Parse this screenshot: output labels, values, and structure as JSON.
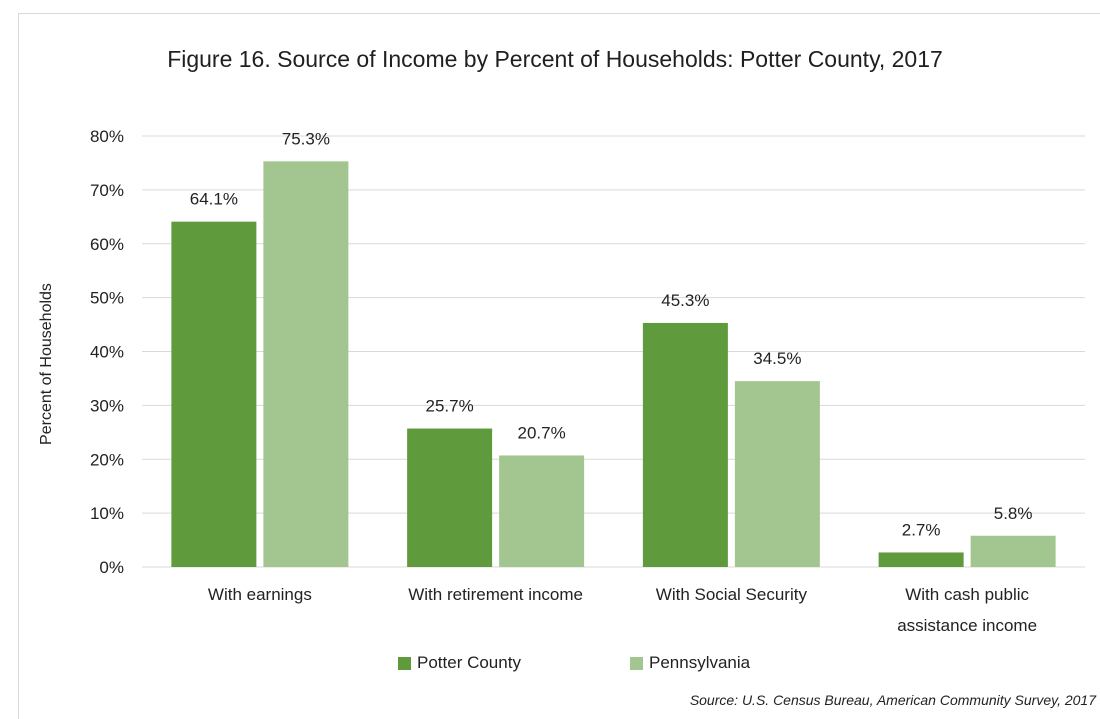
{
  "chart_data": {
    "type": "bar",
    "title": "Figure 16. Source of Income by Percent of Households: Potter County, 2017",
    "ylabel": "Percent of Households",
    "xlabel": "",
    "ylim": [
      0,
      80
    ],
    "yticks": [
      "0%",
      "10%",
      "20%",
      "30%",
      "40%",
      "50%",
      "60%",
      "70%",
      "80%"
    ],
    "ytick_values": [
      0,
      10,
      20,
      30,
      40,
      50,
      60,
      70,
      80
    ],
    "grid": true,
    "legend_position": "bottom",
    "categories": [
      [
        "With earnings"
      ],
      [
        "With retirement income"
      ],
      [
        "With Social Security"
      ],
      [
        "With cash public",
        "assistance income"
      ]
    ],
    "series": [
      {
        "name": "Potter County",
        "color": "#5f9a3c",
        "values": [
          64.1,
          25.7,
          45.3,
          2.7
        ],
        "labels": [
          "64.1%",
          "25.7%",
          "45.3%",
          "2.7%"
        ]
      },
      {
        "name": "Pennsylvania",
        "color": "#a3c58f",
        "values": [
          75.3,
          20.7,
          34.5,
          5.8
        ],
        "labels": [
          "75.3%",
          "20.7%",
          "34.5%",
          "5.8%"
        ]
      }
    ],
    "source": "Source: U.S. Census Bureau, American Community Survey, 2017"
  }
}
